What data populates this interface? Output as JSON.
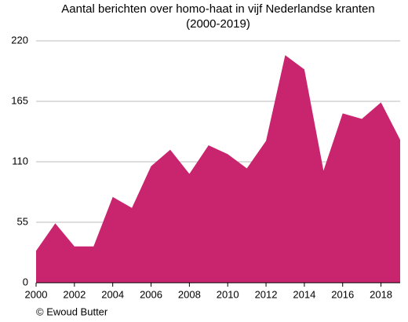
{
  "chart_data": {
    "type": "area",
    "title": "Aantal berichten over homo-haat in vijf Nederlandse kranten",
    "subtitle": "(2000-2019)",
    "source": "© Ewoud Butter",
    "x": [
      2000,
      2001,
      2002,
      2003,
      2004,
      2005,
      2006,
      2007,
      2008,
      2009,
      2010,
      2011,
      2012,
      2013,
      2014,
      2015,
      2016,
      2017,
      2018,
      2019
    ],
    "values": [
      29,
      54,
      33,
      33,
      78,
      68,
      106,
      121,
      99,
      125,
      117,
      104,
      129,
      207,
      194,
      102,
      154,
      149,
      164,
      130
    ],
    "color": "#c9246e",
    "xlim": [
      2000,
      2019
    ],
    "xticks": [
      2000,
      2002,
      2004,
      2006,
      2008,
      2010,
      2012,
      2014,
      2016,
      2018
    ],
    "ylim": [
      0,
      220
    ],
    "yticks": [
      0,
      55,
      110,
      165,
      220
    ],
    "grid": true
  }
}
